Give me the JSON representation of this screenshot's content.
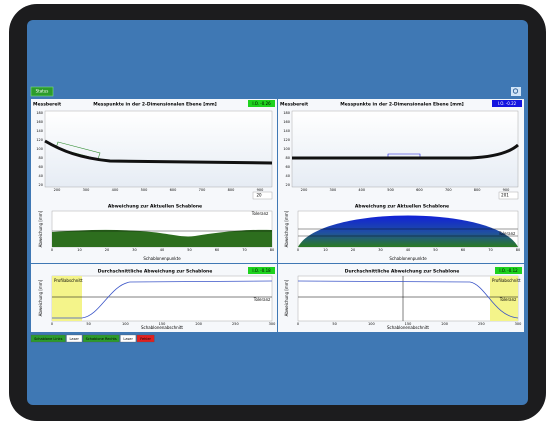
{
  "toolbar": {
    "status_button": "Status"
  },
  "panels": [
    {
      "status": "Messbereit",
      "title": "Messpunkte in der 2-Dimensionalen Ebene [mm]",
      "badge": "I.O. -0.26",
      "yticks": [
        "180",
        "160",
        "140",
        "120",
        "100",
        "80",
        "60",
        "40",
        "20"
      ],
      "xticks": [
        "200",
        "300",
        "400",
        "500",
        "600",
        "700",
        "800",
        "900"
      ],
      "stepper": "20"
    },
    {
      "status": "Messbereit",
      "title": "Messpunkte in der 2-Dimensionalen Ebene [mm]",
      "badge": "I.O. -0.22",
      "yticks": [
        "180",
        "160",
        "140",
        "120",
        "100",
        "80",
        "60",
        "40",
        "20"
      ],
      "xticks": [
        "200",
        "300",
        "400",
        "500",
        "600",
        "700",
        "800",
        "900"
      ],
      "stepper": "201"
    }
  ],
  "deviation": [
    {
      "title": "Abweichung zur Aktuellen Schablone",
      "y_label": "Abweichung [mm]",
      "x_label": "Schablonenpunkte",
      "tolerance": "Toleranz",
      "xticks": [
        "0",
        "10",
        "20",
        "30",
        "40",
        "50",
        "60",
        "70",
        "80"
      ]
    },
    {
      "title": "Abweichung zur Aktuellen Schablone",
      "y_label": "Abweichung [mm]",
      "x_label": "Schablonenpunkte",
      "tolerance": "Toleranz",
      "xticks": [
        "0",
        "10",
        "20",
        "30",
        "40",
        "50",
        "60",
        "70",
        "80"
      ]
    }
  ],
  "average": [
    {
      "title": "Durchschnittliche Abweichung zur Schablone",
      "badge": "I.O. -0.18",
      "y_label": "Abweichung [mm]",
      "x_label": "Schablonenabschnitt",
      "section": "Profilabschnitt",
      "tolerance": "Toleranz",
      "xticks": [
        "0",
        "50",
        "100",
        "150",
        "200",
        "250",
        "300"
      ]
    },
    {
      "title": "Durchschnittliche Abweichung zur Schablone",
      "badge": "I.O. -0.12",
      "y_label": "Abweichung [mm]",
      "x_label": "Schablonenabschnitt",
      "section": "Profilabschnitt",
      "tolerance": "Toleranz",
      "xticks": [
        "0",
        "50",
        "100",
        "150",
        "200",
        "250",
        "300"
      ]
    }
  ],
  "legend": [
    "Schablone Links",
    "Laser",
    "Schablone Rechts",
    "Laser",
    "Fehler"
  ]
}
